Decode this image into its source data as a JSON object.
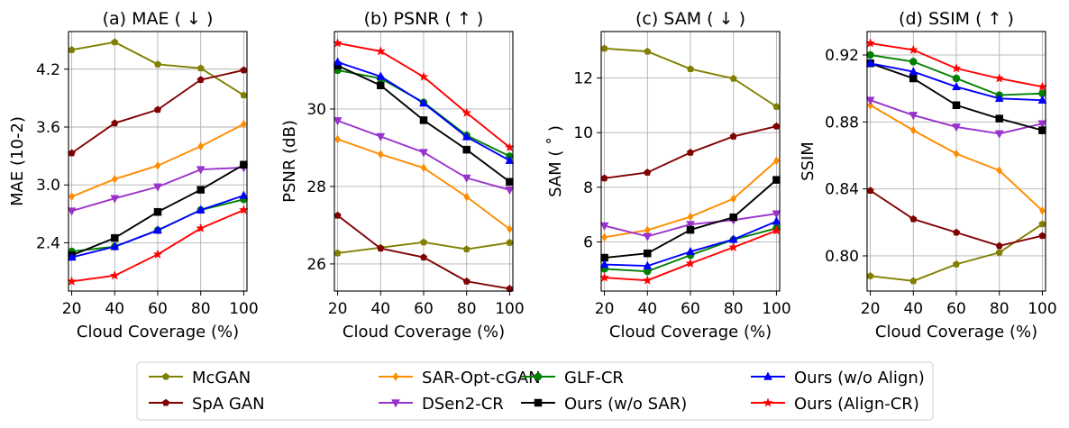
{
  "figure": {
    "x_label": "Cloud Coverage (%)",
    "x_ticks": [
      20,
      40,
      60,
      80,
      100
    ]
  },
  "series_styles": [
    {
      "name": "McGAN",
      "color": "#808000",
      "marker": "pentagon"
    },
    {
      "name": "SpA GAN",
      "color": "#800000",
      "marker": "pentagon"
    },
    {
      "name": "SAR-Opt-cGAN",
      "color": "#ff8c00",
      "marker": "diamond"
    },
    {
      "name": "DSen2-CR",
      "color": "#9932cc",
      "marker": "triangle-down"
    },
    {
      "name": "GLF-CR",
      "color": "#008000",
      "marker": "circle"
    },
    {
      "name": "Ours (w/o SAR)",
      "color": "#000000",
      "marker": "square"
    },
    {
      "name": "Ours (w/o Align)",
      "color": "#0000ff",
      "marker": "triangle-up"
    },
    {
      "name": "Ours (Align-CR)",
      "color": "#ff0000",
      "marker": "star"
    }
  ],
  "legend": {
    "entries": [
      "McGAN",
      "SpA GAN",
      "SAR-Opt-cGAN",
      "DSen2-CR",
      "GLF-CR",
      "Ours (w/o SAR)",
      "Ours (w/o Align)",
      "Ours (Align-CR)"
    ]
  },
  "chart_data": [
    {
      "type": "line",
      "title": "(a) MAE ( ↓ )",
      "xlabel": "Cloud Coverage (%)",
      "ylabel": "MAE (10-2)",
      "x": [
        20,
        40,
        60,
        80,
        100
      ],
      "xlim": [
        18.5,
        101.5
      ],
      "ylim": [
        1.9,
        4.59
      ],
      "yticks": [
        2.4,
        3.0,
        3.6,
        4.2
      ],
      "ytick_labels": [
        "2.4",
        "3.0",
        "3.6",
        "4.2"
      ],
      "series": [
        {
          "name": "McGAN",
          "values": [
            4.4,
            4.48,
            4.25,
            4.21,
            3.93
          ]
        },
        {
          "name": "SpA GAN",
          "values": [
            3.33,
            3.64,
            3.78,
            4.09,
            4.19
          ]
        },
        {
          "name": "SAR-Opt-cGAN",
          "values": [
            2.88,
            3.06,
            3.2,
            3.4,
            3.63
          ]
        },
        {
          "name": "DSen2-CR",
          "values": [
            2.73,
            2.86,
            2.98,
            3.16,
            3.18
          ]
        },
        {
          "name": "GLF-CR",
          "values": [
            2.31,
            2.36,
            2.53,
            2.74,
            2.85
          ]
        },
        {
          "name": "Ours (w/o SAR)",
          "values": [
            2.27,
            2.45,
            2.72,
            2.95,
            3.21
          ]
        },
        {
          "name": "Ours (w/o Align)",
          "values": [
            2.25,
            2.36,
            2.53,
            2.74,
            2.89
          ]
        },
        {
          "name": "Ours (Align-CR)",
          "values": [
            2.0,
            2.06,
            2.28,
            2.55,
            2.74
          ]
        }
      ]
    },
    {
      "type": "line",
      "title": "(b) PSNR ( ↑ )",
      "xlabel": "Cloud Coverage (%)",
      "ylabel": "PSNR (dB)",
      "x": [
        20,
        40,
        60,
        80,
        100
      ],
      "xlim": [
        18.5,
        101.5
      ],
      "ylim": [
        25.3,
        32.0
      ],
      "yticks": [
        26,
        28,
        30
      ],
      "ytick_labels": [
        "26",
        "28",
        "30"
      ],
      "series": [
        {
          "name": "McGAN",
          "values": [
            26.28,
            26.42,
            26.56,
            26.38,
            26.55
          ]
        },
        {
          "name": "SpA GAN",
          "values": [
            27.25,
            26.4,
            26.17,
            25.55,
            25.36
          ]
        },
        {
          "name": "SAR-Opt-cGAN",
          "values": [
            29.22,
            28.83,
            28.48,
            27.73,
            26.9
          ]
        },
        {
          "name": "DSen2-CR",
          "values": [
            29.7,
            29.29,
            28.88,
            28.22,
            27.91
          ]
        },
        {
          "name": "GLF-CR",
          "values": [
            31.0,
            30.79,
            30.17,
            29.32,
            28.78
          ]
        },
        {
          "name": "Ours (w/o SAR)",
          "values": [
            31.12,
            30.61,
            29.71,
            28.95,
            28.12
          ]
        },
        {
          "name": "Ours (w/o Align)",
          "values": [
            31.21,
            30.84,
            30.15,
            29.28,
            28.67
          ]
        },
        {
          "name": "Ours (Align-CR)",
          "values": [
            31.7,
            31.49,
            30.83,
            29.9,
            29.01
          ]
        }
      ]
    },
    {
      "type": "line",
      "title": "(c) SAM ( ↓ )",
      "xlabel": "Cloud Coverage (%)",
      "ylabel": "SAM ( ˚ )",
      "x": [
        20,
        40,
        60,
        80,
        100
      ],
      "xlim": [
        18.5,
        101.5
      ],
      "ylim": [
        4.2,
        13.7
      ],
      "yticks": [
        6,
        8,
        10,
        12
      ],
      "ytick_labels": [
        "6",
        "8",
        "10",
        "12"
      ],
      "series": [
        {
          "name": "McGAN",
          "values": [
            13.08,
            12.97,
            12.33,
            11.98,
            10.95
          ]
        },
        {
          "name": "SpA GAN",
          "values": [
            8.33,
            8.54,
            9.27,
            9.86,
            10.23
          ]
        },
        {
          "name": "SAR-Opt-cGAN",
          "values": [
            6.17,
            6.43,
            6.92,
            7.58,
            8.97
          ]
        },
        {
          "name": "DSen2-CR",
          "values": [
            6.59,
            6.2,
            6.64,
            6.8,
            7.03
          ]
        },
        {
          "name": "GLF-CR",
          "values": [
            5.01,
            4.92,
            5.51,
            6.08,
            6.5
          ]
        },
        {
          "name": "Ours (w/o SAR)",
          "values": [
            5.42,
            5.58,
            6.44,
            6.9,
            8.27
          ]
        },
        {
          "name": "Ours (w/o Align)",
          "values": [
            5.17,
            5.12,
            5.64,
            6.09,
            6.75
          ]
        },
        {
          "name": "Ours (Align-CR)",
          "values": [
            4.69,
            4.59,
            5.21,
            5.8,
            6.41
          ]
        }
      ]
    },
    {
      "type": "line",
      "title": "(d) SSIM ( ↑ )",
      "xlabel": "Cloud Coverage (%)",
      "ylabel": "SSIM",
      "x": [
        20,
        40,
        60,
        80,
        100
      ],
      "xlim": [
        18.5,
        101.5
      ],
      "ylim": [
        0.779,
        0.934
      ],
      "yticks": [
        0.8,
        0.84,
        0.88,
        0.92
      ],
      "ytick_labels": [
        "0.80",
        "0.84",
        "0.88",
        "0.92"
      ],
      "series": [
        {
          "name": "McGAN",
          "values": [
            0.788,
            0.785,
            0.795,
            0.802,
            0.819
          ]
        },
        {
          "name": "SpA GAN",
          "values": [
            0.839,
            0.822,
            0.814,
            0.806,
            0.812
          ]
        },
        {
          "name": "SAR-Opt-cGAN",
          "values": [
            0.89,
            0.875,
            0.861,
            0.851,
            0.827
          ]
        },
        {
          "name": "DSen2-CR",
          "values": [
            0.893,
            0.884,
            0.877,
            0.873,
            0.879
          ]
        },
        {
          "name": "GLF-CR",
          "values": [
            0.92,
            0.916,
            0.906,
            0.896,
            0.897
          ]
        },
        {
          "name": "Ours (w/o SAR)",
          "values": [
            0.915,
            0.906,
            0.89,
            0.882,
            0.875
          ]
        },
        {
          "name": "Ours (w/o Align)",
          "values": [
            0.915,
            0.91,
            0.901,
            0.894,
            0.893
          ]
        },
        {
          "name": "Ours (Align-CR)",
          "values": [
            0.927,
            0.923,
            0.912,
            0.906,
            0.901
          ]
        }
      ]
    }
  ]
}
